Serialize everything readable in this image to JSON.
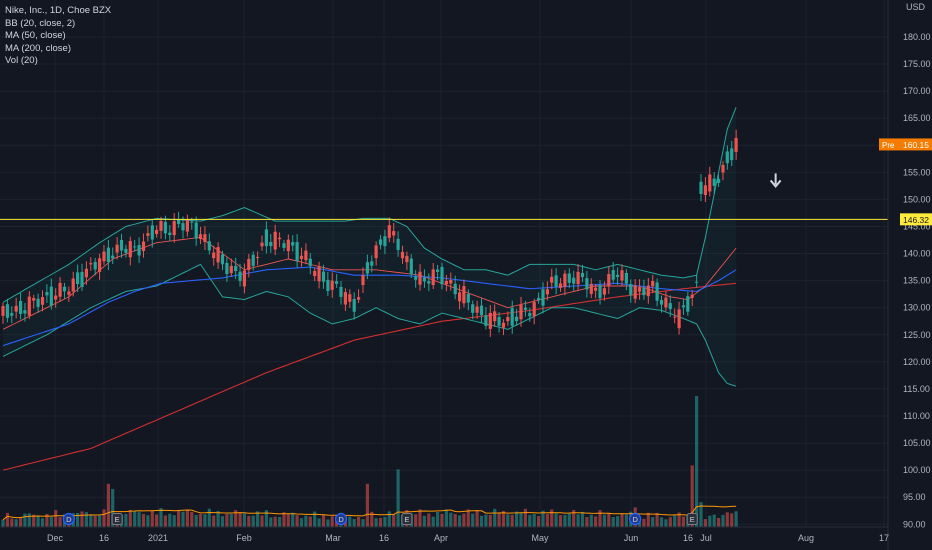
{
  "header": {
    "symbol_line": "Nike, Inc., 1D, Choe BZX",
    "indicators": [
      "BB (20, close, 2)",
      "MA (50, close)",
      "MA (200, close)",
      "Vol (20)"
    ]
  },
  "colors": {
    "background": "#131722",
    "up": "#26a69a",
    "down": "#ef5350",
    "bb_band": "#26a69a",
    "ma50": "#2962ff",
    "ma200": "#d32f2f",
    "bb_basis": "#ef5350",
    "horizontal_line": "#ffeb3b",
    "premarket_badge": "#f57c00",
    "grid": "#1e222d"
  },
  "chart_data": {
    "type": "candlestick",
    "title": "Nike, Inc., 1D, Choe BZX",
    "currency_label": "USD",
    "y_axis": {
      "ylim": [
        89.5,
        183.5
      ],
      "ticks": [
        "180.00",
        "175.00",
        "170.00",
        "165.00",
        "160.00",
        "155.00",
        "150.00",
        "145.00",
        "140.00",
        "135.00",
        "130.00",
        "125.00",
        "120.00",
        "115.00",
        "110.00",
        "105.00",
        "100.00",
        "95.00",
        "90.00"
      ]
    },
    "x_axis": {
      "ticks": [
        "Dec",
        "16",
        "2021",
        "Feb",
        "Mar",
        "16",
        "Apr",
        "May",
        "Jun",
        "16",
        "Jul",
        "Aug",
        "17"
      ]
    },
    "horizontal_line": {
      "value": 146.32,
      "label": "146.32"
    },
    "premarket": {
      "label": "Pre",
      "value": "160.15"
    },
    "annotations": [
      {
        "type": "arrow-down",
        "x_index": 176,
        "value": 153.5
      }
    ],
    "events": [
      {
        "label": "D",
        "x_index": 15
      },
      {
        "label": "E",
        "x_index": 26
      },
      {
        "label": "D",
        "x_index": 77
      },
      {
        "label": "E",
        "x_index": 92
      },
      {
        "label": "D",
        "x_index": 144
      },
      {
        "label": "E",
        "x_index": 157
      }
    ],
    "series": [
      {
        "name": "Price",
        "kind": "ohlc",
        "anchors": [
          [
            0,
            128.5
          ],
          [
            15,
            133.5
          ],
          [
            24,
            140
          ],
          [
            30,
            141
          ],
          [
            35,
            144
          ],
          [
            40,
            145.5
          ],
          [
            45,
            144
          ],
          [
            50,
            138
          ],
          [
            55,
            136
          ],
          [
            60,
            142.5
          ],
          [
            65,
            142
          ],
          [
            70,
            138
          ],
          [
            75,
            134
          ],
          [
            80,
            131
          ],
          [
            85,
            140
          ],
          [
            88,
            145
          ],
          [
            92,
            138
          ],
          [
            96,
            135
          ],
          [
            100,
            136
          ],
          [
            105,
            132
          ],
          [
            110,
            128
          ],
          [
            115,
            127.5
          ],
          [
            120,
            129.5
          ],
          [
            125,
            134
          ],
          [
            130,
            136
          ],
          [
            135,
            133
          ],
          [
            140,
            136
          ],
          [
            145,
            133
          ],
          [
            148,
            133.5
          ],
          [
            152,
            130
          ],
          [
            154,
            128
          ],
          [
            156,
            131
          ],
          [
            158,
            134
          ],
          [
            159,
            152
          ],
          [
            162,
            153
          ],
          [
            165,
            157
          ],
          [
            167,
            160
          ]
        ]
      },
      {
        "name": "MA 50",
        "anchors": [
          [
            0,
            123
          ],
          [
            15,
            127
          ],
          [
            24,
            131
          ],
          [
            30,
            133
          ],
          [
            36,
            134.5
          ],
          [
            50,
            135.5
          ],
          [
            60,
            137
          ],
          [
            70,
            137.5
          ],
          [
            80,
            136
          ],
          [
            90,
            136
          ],
          [
            100,
            135.5
          ],
          [
            110,
            134.5
          ],
          [
            120,
            133.5
          ],
          [
            130,
            134
          ],
          [
            140,
            134.5
          ],
          [
            150,
            133.5
          ],
          [
            158,
            133
          ],
          [
            163,
            135
          ],
          [
            167,
            137
          ]
        ]
      },
      {
        "name": "MA 200",
        "anchors": [
          [
            0,
            100
          ],
          [
            20,
            104
          ],
          [
            40,
            111
          ],
          [
            60,
            118
          ],
          [
            80,
            124
          ],
          [
            100,
            127.5
          ],
          [
            120,
            129.5
          ],
          [
            140,
            132
          ],
          [
            155,
            133.5
          ],
          [
            167,
            134.5
          ]
        ]
      },
      {
        "name": "BB basis",
        "anchors": [
          [
            0,
            126
          ],
          [
            15,
            132
          ],
          [
            25,
            139
          ],
          [
            35,
            142
          ],
          [
            45,
            143
          ],
          [
            55,
            137
          ],
          [
            65,
            139
          ],
          [
            75,
            137
          ],
          [
            85,
            137
          ],
          [
            95,
            136
          ],
          [
            105,
            133
          ],
          [
            115,
            130
          ],
          [
            125,
            132
          ],
          [
            135,
            134
          ],
          [
            145,
            134
          ],
          [
            152,
            132
          ],
          [
            156,
            131.5
          ],
          [
            160,
            134
          ],
          [
            163,
            137
          ],
          [
            167,
            141
          ]
        ]
      },
      {
        "name": "BB upper",
        "anchors": [
          [
            0,
            131
          ],
          [
            15,
            138
          ],
          [
            22,
            142
          ],
          [
            28,
            145
          ],
          [
            35,
            146.5
          ],
          [
            45,
            146
          ],
          [
            50,
            147
          ],
          [
            55,
            148.5
          ],
          [
            62,
            146
          ],
          [
            70,
            146
          ],
          [
            78,
            146
          ],
          [
            82,
            146.5
          ],
          [
            88,
            146.5
          ],
          [
            92,
            145
          ],
          [
            96,
            141
          ],
          [
            100,
            139
          ],
          [
            105,
            137
          ],
          [
            110,
            137
          ],
          [
            115,
            136
          ],
          [
            120,
            138
          ],
          [
            125,
            138
          ],
          [
            130,
            138
          ],
          [
            135,
            137
          ],
          [
            140,
            138
          ],
          [
            145,
            137
          ],
          [
            150,
            136
          ],
          [
            155,
            135.5
          ],
          [
            158,
            136
          ],
          [
            160,
            143
          ],
          [
            163,
            155
          ],
          [
            165,
            163
          ],
          [
            167,
            167
          ]
        ]
      },
      {
        "name": "BB lower",
        "anchors": [
          [
            0,
            121
          ],
          [
            10,
            125
          ],
          [
            20,
            130
          ],
          [
            28,
            133
          ],
          [
            35,
            134
          ],
          [
            40,
            136
          ],
          [
            45,
            138
          ],
          [
            50,
            132
          ],
          [
            55,
            131.5
          ],
          [
            60,
            133
          ],
          [
            65,
            132
          ],
          [
            70,
            129
          ],
          [
            75,
            127
          ],
          [
            80,
            128
          ],
          [
            85,
            130
          ],
          [
            90,
            128
          ],
          [
            95,
            127
          ],
          [
            100,
            129
          ],
          [
            105,
            128
          ],
          [
            110,
            127
          ],
          [
            115,
            126
          ],
          [
            120,
            128
          ],
          [
            125,
            130
          ],
          [
            130,
            130
          ],
          [
            135,
            129
          ],
          [
            140,
            128
          ],
          [
            145,
            130
          ],
          [
            150,
            129.5
          ],
          [
            155,
            128
          ],
          [
            158,
            127
          ],
          [
            160,
            124
          ],
          [
            163,
            118
          ],
          [
            165,
            116
          ],
          [
            167,
            115.5
          ]
        ]
      },
      {
        "name": "Volume",
        "kind": "histogram",
        "max_label": "110.00",
        "spikes": [
          [
            24,
            0.33
          ],
          [
            25,
            0.29
          ],
          [
            82,
            0.06
          ],
          [
            83,
            0.33
          ],
          [
            90,
            0.44
          ],
          [
            92,
            0.13
          ],
          [
            144,
            0.15
          ],
          [
            157,
            0.47
          ],
          [
            158,
            1.0
          ],
          [
            159,
            0.19
          ],
          [
            160,
            0.06
          ]
        ]
      }
    ]
  }
}
